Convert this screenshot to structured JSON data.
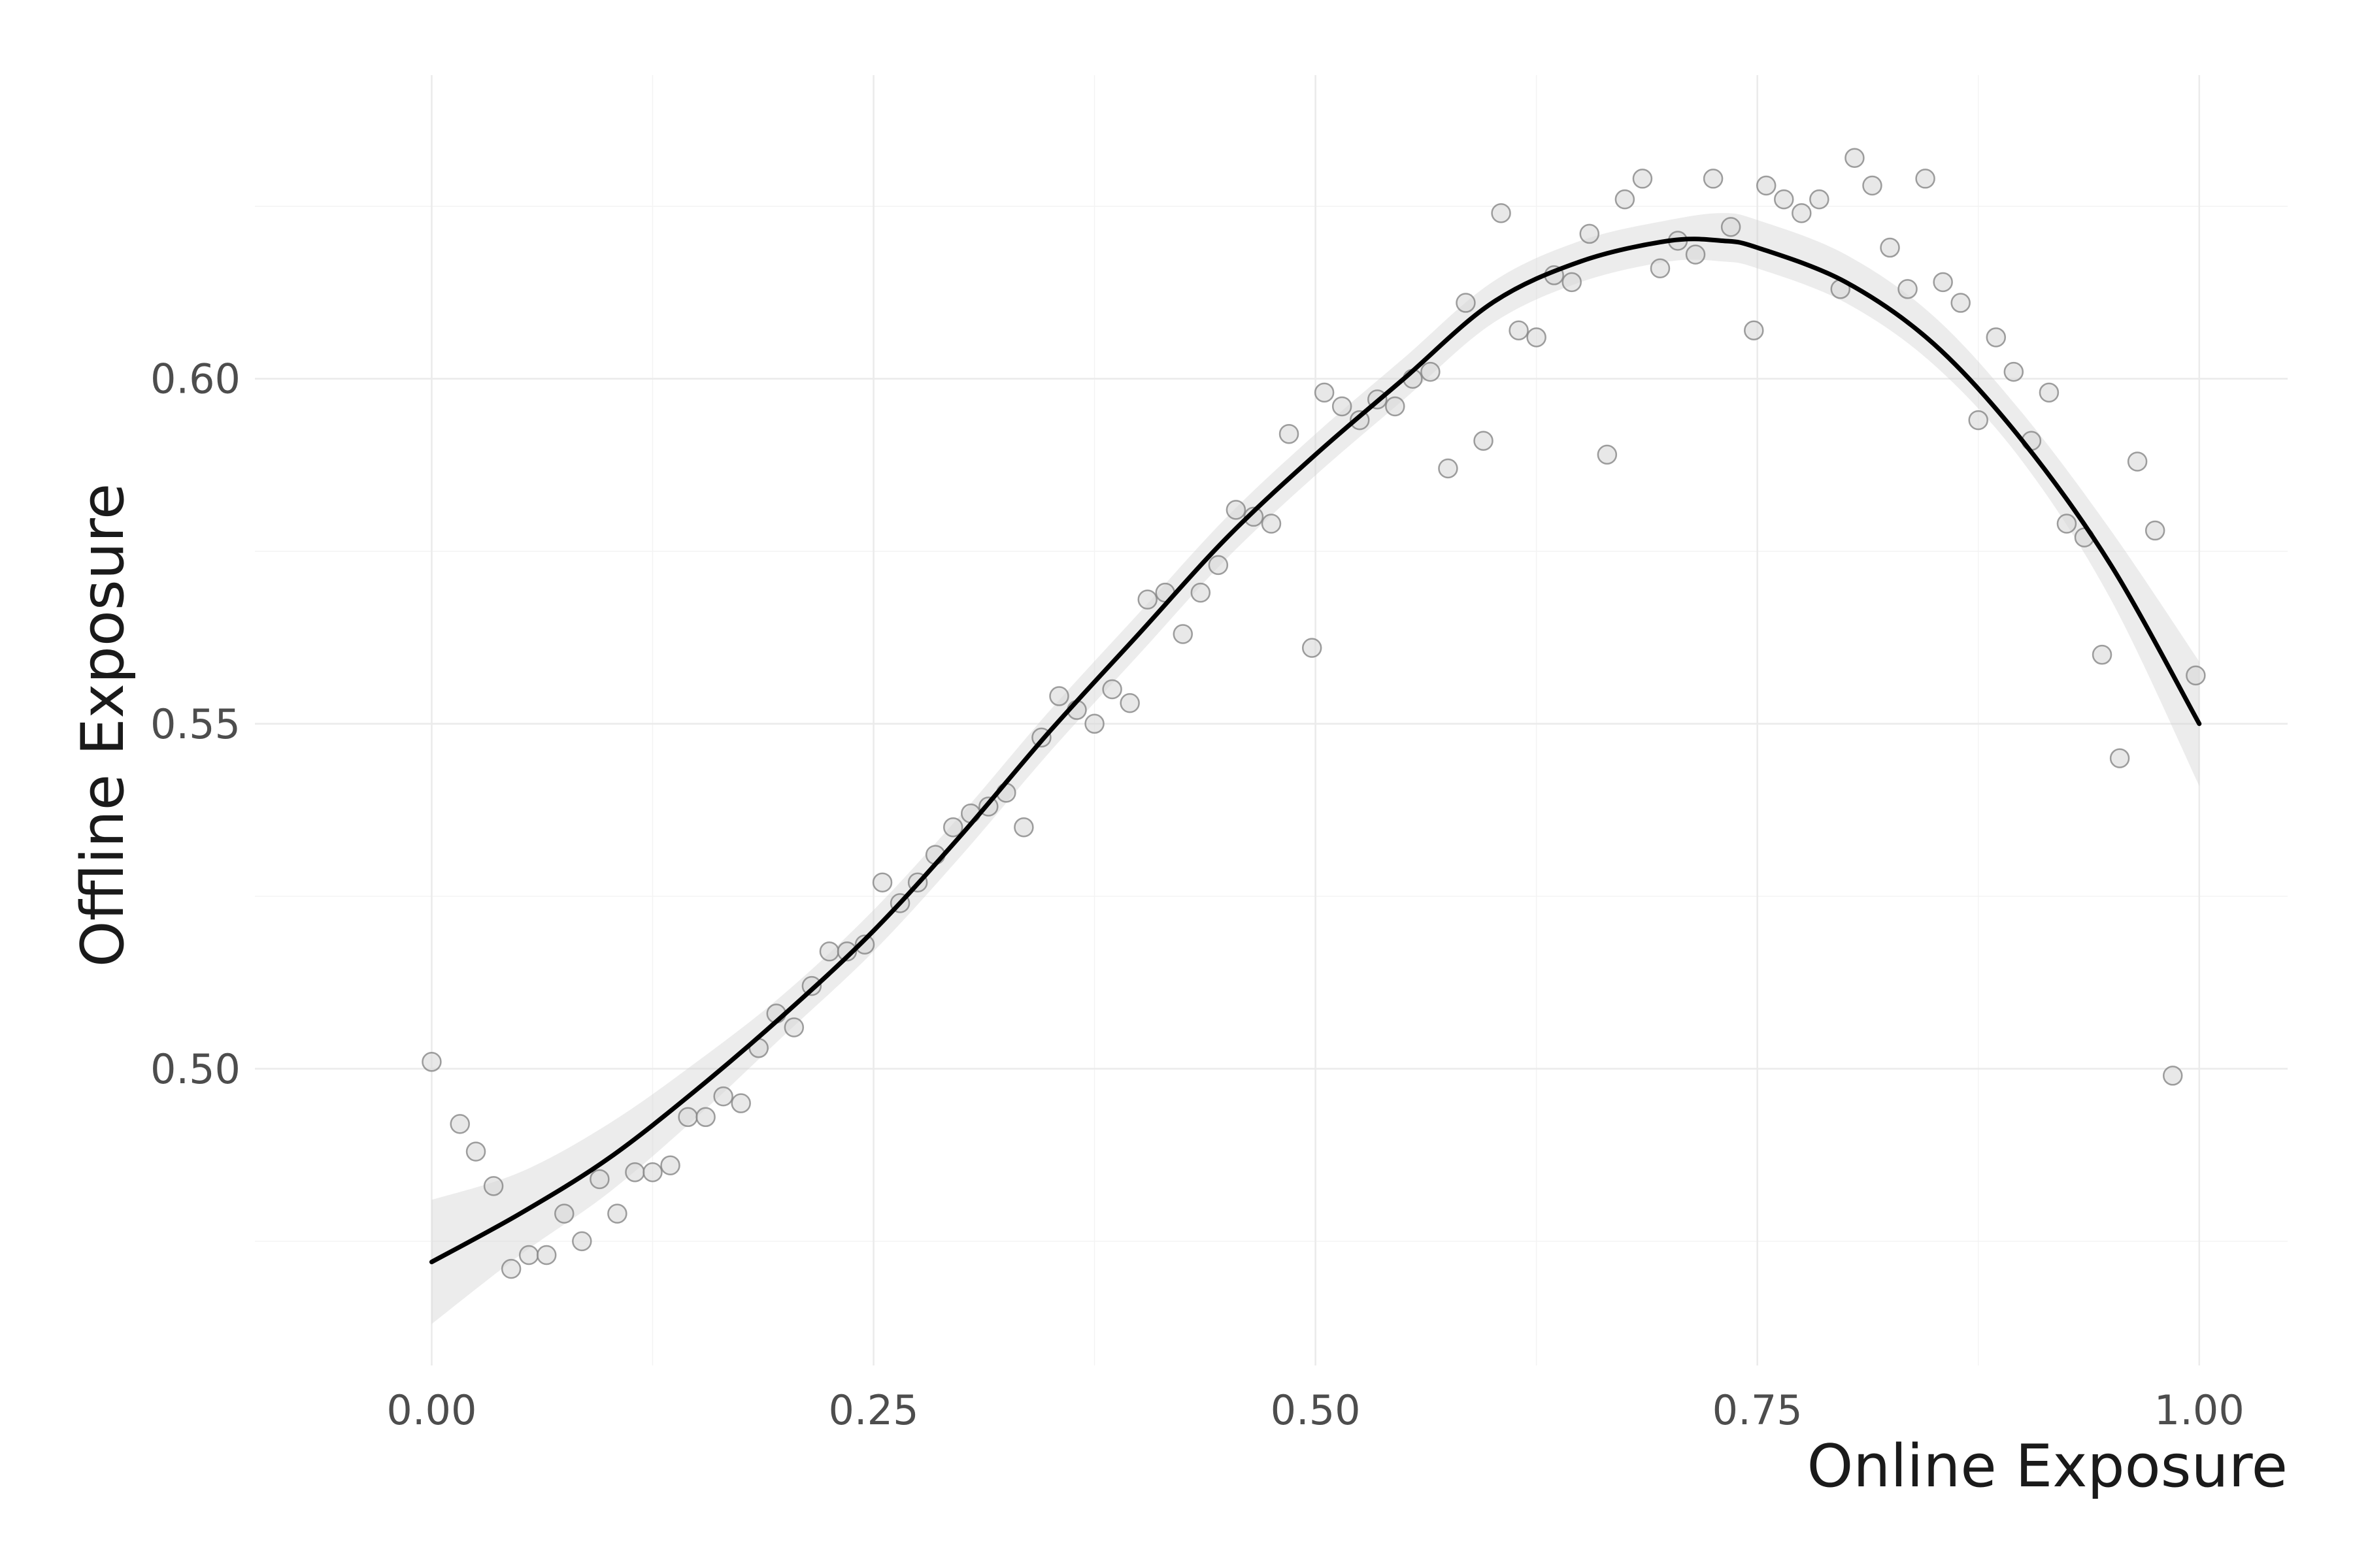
{
  "chart_data": {
    "type": "scatter",
    "title": "",
    "xlabel": "Online Exposure",
    "ylabel": "Offline Exposure",
    "xlim": [
      -0.1,
      1.05
    ],
    "ylim": [
      0.457,
      0.644
    ],
    "x_ticks": [
      0.0,
      0.25,
      0.5,
      0.75,
      1.0
    ],
    "x_tick_labels": [
      "0.00",
      "0.25",
      "0.50",
      "0.75",
      "1.00"
    ],
    "y_ticks": [
      0.5,
      0.55,
      0.6
    ],
    "y_tick_labels": [
      "0.50",
      "0.55",
      "0.60"
    ],
    "grid": true,
    "legend": "none",
    "colors": {
      "points_fill": "#d9d9d9",
      "points_stroke": "#7f7f7f",
      "line": "#000000",
      "ribbon": "#d0d0d0"
    },
    "series": [
      {
        "kind": "points",
        "x": [
          0.0,
          0.016,
          0.025,
          0.035,
          0.045,
          0.055,
          0.065,
          0.075,
          0.085,
          0.095,
          0.105,
          0.115,
          0.125,
          0.135,
          0.145,
          0.155,
          0.165,
          0.175,
          0.185,
          0.195,
          0.205,
          0.215,
          0.225,
          0.235,
          0.245,
          0.255,
          0.265,
          0.275,
          0.285,
          0.295,
          0.305,
          0.315,
          0.325,
          0.335,
          0.345,
          0.355,
          0.365,
          0.375,
          0.385,
          0.395,
          0.405,
          0.415,
          0.425,
          0.435,
          0.445,
          0.455,
          0.465,
          0.475,
          0.485,
          0.498,
          0.505,
          0.515,
          0.525,
          0.535,
          0.545,
          0.555,
          0.565,
          0.575,
          0.585,
          0.595,
          0.605,
          0.615,
          0.625,
          0.635,
          0.645,
          0.655,
          0.665,
          0.675,
          0.685,
          0.695,
          0.705,
          0.715,
          0.725,
          0.735,
          0.748,
          0.755,
          0.765,
          0.775,
          0.785,
          0.797,
          0.805,
          0.815,
          0.825,
          0.835,
          0.845,
          0.855,
          0.865,
          0.875,
          0.885,
          0.895,
          0.905,
          0.915,
          0.925,
          0.935,
          0.945,
          0.955,
          0.965,
          0.975,
          0.985,
          0.998
        ],
        "y": [
          0.501,
          0.492,
          0.488,
          0.483,
          0.471,
          0.473,
          0.473,
          0.479,
          0.475,
          0.484,
          0.479,
          0.485,
          0.485,
          0.486,
          0.493,
          0.493,
          0.496,
          0.495,
          0.503,
          0.508,
          0.506,
          0.512,
          0.517,
          0.517,
          0.518,
          0.527,
          0.524,
          0.527,
          0.531,
          0.535,
          0.537,
          0.538,
          0.54,
          0.535,
          0.548,
          0.554,
          0.552,
          0.55,
          0.555,
          0.553,
          0.568,
          0.569,
          0.563,
          0.569,
          0.573,
          0.581,
          0.58,
          0.579,
          0.592,
          0.561,
          0.598,
          0.596,
          0.594,
          0.597,
          0.596,
          0.6,
          0.601,
          0.587,
          0.611,
          0.591,
          0.624,
          0.607,
          0.606,
          0.615,
          0.614,
          0.621,
          0.589,
          0.626,
          0.629,
          0.616,
          0.62,
          0.618,
          0.629,
          0.622,
          0.607,
          0.628,
          0.626,
          0.624,
          0.626,
          0.613,
          0.632,
          0.628,
          0.619,
          0.613,
          0.629,
          0.614,
          0.611,
          0.594,
          0.606,
          0.601,
          0.591,
          0.598,
          0.579,
          0.577,
          0.56,
          0.545,
          0.588,
          0.578,
          0.499,
          0.557
        ]
      },
      {
        "kind": "smooth",
        "x": [
          0.0,
          0.05,
          0.1,
          0.15,
          0.2,
          0.25,
          0.3,
          0.35,
          0.4,
          0.45,
          0.5,
          0.55,
          0.6,
          0.65,
          0.7,
          0.73,
          0.75,
          0.8,
          0.85,
          0.9,
          0.95,
          1.0
        ],
        "y": [
          0.472,
          0.479,
          0.487,
          0.497,
          0.508,
          0.52,
          0.534,
          0.549,
          0.563,
          0.577,
          0.589,
          0.6,
          0.611,
          0.617,
          0.62,
          0.62,
          0.619,
          0.614,
          0.605,
          0.591,
          0.573,
          0.55
        ],
        "ymin": [
          0.463,
          0.473,
          0.482,
          0.493,
          0.505,
          0.517,
          0.531,
          0.546,
          0.56,
          0.574,
          0.586,
          0.597,
          0.608,
          0.614,
          0.617,
          0.617,
          0.616,
          0.611,
          0.602,
          0.588,
          0.568,
          0.541
        ],
        "ymax": [
          0.481,
          0.485,
          0.492,
          0.501,
          0.511,
          0.523,
          0.537,
          0.552,
          0.566,
          0.58,
          0.592,
          0.603,
          0.614,
          0.62,
          0.623,
          0.624,
          0.623,
          0.618,
          0.609,
          0.595,
          0.578,
          0.559
        ]
      }
    ]
  }
}
